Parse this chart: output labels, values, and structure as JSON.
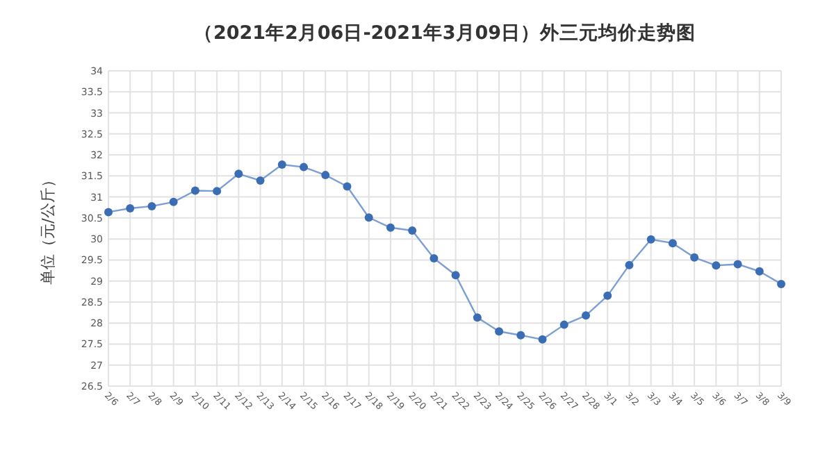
{
  "chart_data": {
    "type": "line",
    "title": "（2021年2月06日-2021年3月09日）外三元均价走势图",
    "ylabel": "单位（元/公斤）",
    "categories": [
      "2/6",
      "2/7",
      "2/8",
      "2/9",
      "2/10",
      "2/11",
      "2/12",
      "2/13",
      "2/14",
      "2/15",
      "2/16",
      "2/17",
      "2/18",
      "2/19",
      "2/20",
      "2/21",
      "2/22",
      "2/23",
      "2/24",
      "2/25",
      "2/26",
      "2/27",
      "2/28",
      "3/1",
      "3/2",
      "3/3",
      "3/4",
      "3/5",
      "3/6",
      "3/7",
      "3/8",
      "3/9"
    ],
    "series": [
      {
        "color": "#3b6db5",
        "values": [
          30.64,
          30.73,
          30.78,
          30.88,
          31.15,
          31.14,
          31.55,
          31.39,
          31.77,
          31.71,
          31.52,
          31.25,
          30.51,
          30.27,
          30.2,
          29.54,
          29.14,
          28.13,
          27.8,
          27.71,
          27.61,
          27.96,
          28.18,
          28.65,
          29.38,
          29.99,
          29.9,
          29.56,
          29.37,
          29.4,
          29.23,
          28.93
        ]
      }
    ],
    "ylim": [
      26.5,
      34
    ],
    "yticks": [
      26.5,
      27,
      27.5,
      28,
      28.5,
      29,
      29.5,
      30,
      30.5,
      31,
      31.5,
      32,
      32.5,
      33,
      33.5,
      34
    ],
    "grid": true,
    "marker": "circle",
    "line_style": "solid"
  }
}
